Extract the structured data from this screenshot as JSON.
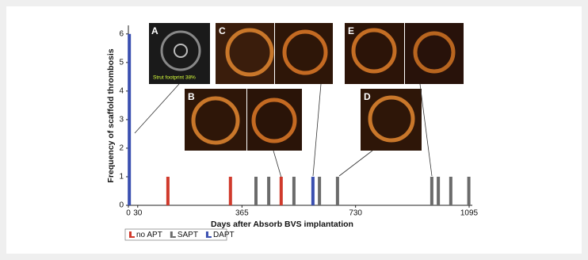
{
  "chart_data": {
    "type": "bar",
    "x_label": "Days after Absorb BVS implantation",
    "y_label": "Frequency of scaffold thrombosis",
    "xlim": [
      0,
      1095
    ],
    "ylim": [
      0,
      6.3
    ],
    "xticks": [
      0,
      30,
      365,
      730,
      1095
    ],
    "yticks": [
      0,
      1,
      2,
      3,
      4,
      5,
      6
    ],
    "grid": false,
    "legend_position": "bottom-left",
    "series": [
      {
        "name": "no APT",
        "color": "#d03a2c",
        "x": [
          127,
          328,
          491
        ],
        "values": [
          1,
          1,
          1
        ]
      },
      {
        "name": "SAPT",
        "color": "#6b6b6b",
        "x": [
          410,
          451,
          532,
          614,
          672,
          975,
          996,
          1036,
          1094
        ],
        "values": [
          1,
          1,
          1,
          1,
          1,
          1,
          1,
          1,
          1
        ]
      },
      {
        "name": "DAPT",
        "color": "#3a4fb0",
        "x": [
          3,
          593
        ],
        "values": [
          6,
          1
        ]
      }
    ],
    "annotations": [
      "A",
      "Strut footprint 38%",
      "B",
      "C",
      "D",
      "E"
    ]
  }
}
